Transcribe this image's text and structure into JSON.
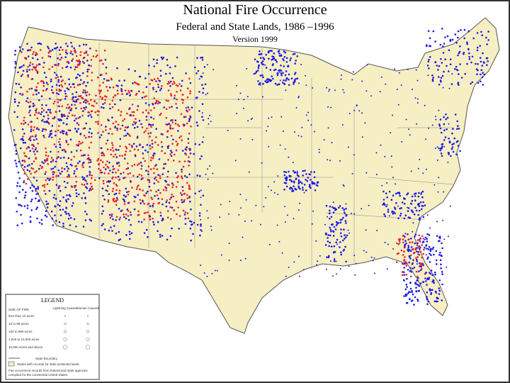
{
  "header": {
    "title": "National Fire Occurrence",
    "subtitle": "Federal and State Lands, 1986 –1996",
    "version": "Version 1999"
  },
  "legend": {
    "title": "LEGEND",
    "size_heading": "SIZE OF FIRE",
    "columns": [
      "Lightning Caused",
      "Human Caused"
    ],
    "rows": [
      "less than 10 acres",
      "10 to 99 acres",
      "100 to 999 acres",
      "1,000 to 10,000 acres",
      "10,000 acres and above"
    ],
    "state_boundary": "State Boundary",
    "state_lands": "States with records for state protected lands",
    "notes": [
      "Fire occurrence records from federal and state agencies",
      "compiled for the continental United States"
    ]
  }
}
